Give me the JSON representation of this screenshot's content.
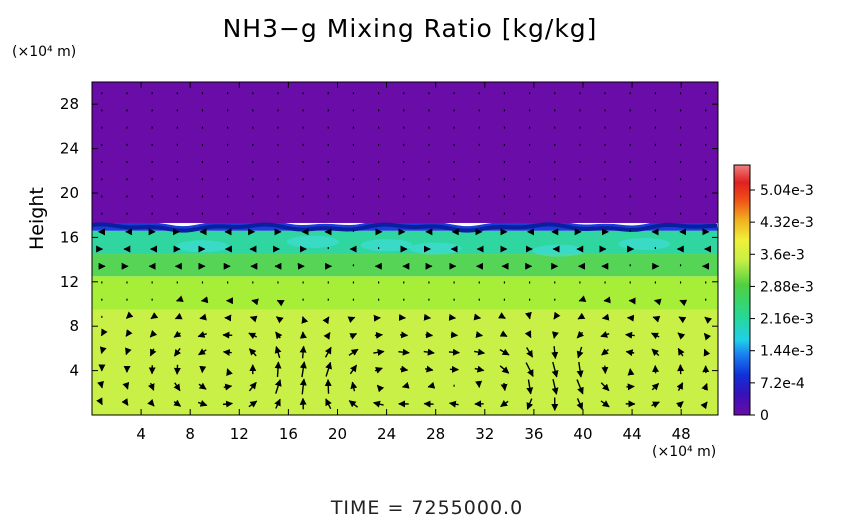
{
  "chart_data": {
    "type": "heatmap",
    "title": "NH3−g Mixing Ratio [kg/kg]",
    "ylabel": "Height",
    "x_unit": "(×10⁴ m)",
    "y_unit": "(×10⁴ m)",
    "x_ticks": [
      "4",
      "8",
      "12",
      "16",
      "20",
      "24",
      "28",
      "32",
      "36",
      "40",
      "44",
      "48"
    ],
    "y_ticks": [
      "4",
      "8",
      "12",
      "16",
      "20",
      "24",
      "28"
    ],
    "xlim": [
      0,
      51
    ],
    "ylim": [
      0,
      30
    ],
    "colorbar": {
      "range": [
        0,
        0.0056
      ],
      "tick_labels": [
        "0",
        "7.2e-4",
        "1.44e-3",
        "2.16e-3",
        "2.88e-3",
        "3.6e-3",
        "4.32e-3",
        "5.04e-3"
      ],
      "tick_values": [
        0,
        0.00072,
        0.00144,
        0.00216,
        0.00288,
        0.0036,
        0.00432,
        0.00504
      ]
    },
    "field_layers": [
      {
        "y_from": 0,
        "y_to": 9.5,
        "value": 0.0037,
        "color": "#c8f046"
      },
      {
        "y_from": 9.5,
        "y_to": 12.5,
        "value": 0.0034,
        "color": "#a6ee38"
      },
      {
        "y_from": 12.5,
        "y_to": 14.5,
        "value": 0.0029,
        "color": "#55d455"
      },
      {
        "y_from": 14.5,
        "y_to": 16.6,
        "value": 0.0021,
        "color": "#2fd6a0"
      },
      {
        "y_from": 16.6,
        "y_to": 17.3,
        "value": 0.0008,
        "color": "#1c3cd8"
      },
      {
        "y_from": 17.3,
        "y_to": 30,
        "value": 0.0,
        "color": "#6a0ca8"
      }
    ],
    "colors": {
      "tropopause_dark": "#0a1fa0",
      "cyan_patch": "#44e0e6"
    },
    "overlay": "wind vectors"
  },
  "footer": {
    "time": "TIME  =  7255000.0"
  }
}
